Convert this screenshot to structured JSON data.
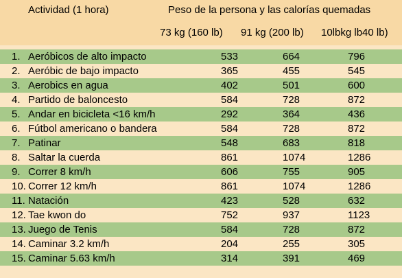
{
  "header": {
    "activity": "Actividad (1 hora)",
    "weight_title": "Peso de la persona y las calorías quemadas",
    "columns": [
      "73 kg (160 lb)",
      "91 kg (200 lb)",
      "10lbkg lb40 lb)"
    ]
  },
  "rows": [
    {
      "num": "1.",
      "name": "Aeróbicos de alto impacto",
      "values": [
        "533",
        "664",
        "796"
      ]
    },
    {
      "num": "2.",
      "name": "Aeróbic de bajo impacto",
      "values": [
        "365",
        "455",
        "545"
      ]
    },
    {
      "num": "3.",
      "name": "Aerobics en agua",
      "values": [
        "402",
        "501",
        "600"
      ]
    },
    {
      "num": "4.",
      "name": "Partido de baloncesto",
      "values": [
        "584",
        "728",
        "872"
      ]
    },
    {
      "num": "5.",
      "name": "Andar en bicicleta <16 km/h",
      "values": [
        "292",
        "364",
        "436"
      ]
    },
    {
      "num": "6.",
      "name": "Fútbol americano o bandera",
      "values": [
        "584",
        "728",
        "872"
      ]
    },
    {
      "num": "7.",
      "name": "Patinar",
      "values": [
        "548",
        "683",
        "818"
      ]
    },
    {
      "num": "8.",
      "name": "Saltar la cuerda",
      "values": [
        "861",
        "1074",
        "1286"
      ]
    },
    {
      "num": "9.",
      "name": "Correr 8 km/h",
      "values": [
        "606",
        "755",
        "905"
      ]
    },
    {
      "num": "10.",
      "name": "Correr 12 km/h",
      "values": [
        "861",
        "1074",
        "1286"
      ]
    },
    {
      "num": "11.",
      "name": "Natación",
      "values": [
        "423",
        "528",
        "632"
      ]
    },
    {
      "num": "12.",
      "name": "Tae kwon do",
      "values": [
        "752",
        "937",
        "1123"
      ]
    },
    {
      "num": "13.",
      "name": "Juego de Tenis",
      "values": [
        "584",
        "728",
        "872"
      ]
    },
    {
      "num": "14.",
      "name": "Caminar 3.2 km/h",
      "values": [
        "204",
        "255",
        "305"
      ]
    },
    {
      "num": "15.",
      "name": "Caminar 5.63 km/h",
      "values": [
        "314",
        "391",
        "469"
      ]
    }
  ]
}
